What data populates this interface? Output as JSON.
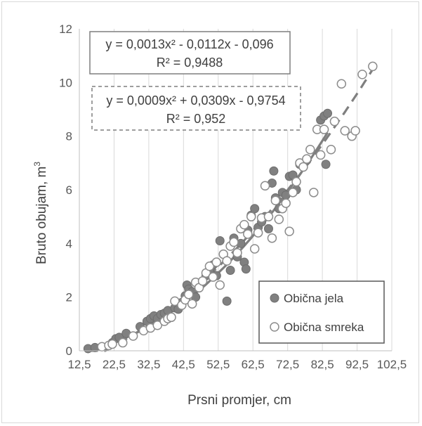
{
  "chart_data": {
    "type": "scatter",
    "xlabel": "Prsni promjer, cm",
    "ylabel": "Bruto obujam, m",
    "ylabel_sup": "3",
    "xlim": [
      12.5,
      102.5
    ],
    "ylim": [
      0,
      12
    ],
    "x_ticks": [
      "12,5",
      "22,5",
      "32,5",
      "42,5",
      "52,5",
      "62,5",
      "72,5",
      "82,5",
      "92,5",
      "102,5"
    ],
    "y_ticks": [
      "0",
      "2",
      "4",
      "6",
      "8",
      "10",
      "12"
    ],
    "grid": "vertical",
    "legend_position": "bottom-right",
    "colors": {
      "jela": "#808080",
      "smreka_fill": "#ffffff",
      "smreka_edge": "#8c8c8c",
      "trend": "#7f7f7f"
    },
    "series": [
      {
        "name": "Obična jela",
        "marker": "filled-circle",
        "trendline": {
          "style": "solid",
          "a": 0.0013,
          "b": -0.0112,
          "c": -0.096,
          "equation": "y = 0,0013x² - 0,0112x - 0,096",
          "r2": "R² = 0,9488",
          "x_range": [
            14,
            84
          ]
        },
        "points": [
          [
            15,
            0.08
          ],
          [
            17,
            0.12
          ],
          [
            22,
            0.3
          ],
          [
            23,
            0.45
          ],
          [
            24,
            0.5
          ],
          [
            26,
            0.65
          ],
          [
            30,
            0.9
          ],
          [
            32,
            1.1
          ],
          [
            33,
            1.2
          ],
          [
            34,
            1.3
          ],
          [
            35,
            1.2
          ],
          [
            36,
            1.35
          ],
          [
            37,
            1.4
          ],
          [
            38,
            1.5
          ],
          [
            40,
            1.6
          ],
          [
            41,
            1.55
          ],
          [
            42,
            1.8
          ],
          [
            43,
            2.05
          ],
          [
            43.5,
            2.45
          ],
          [
            44,
            2.3
          ],
          [
            45,
            2.2
          ],
          [
            46,
            2.0
          ],
          [
            47,
            2.5
          ],
          [
            48,
            2.6
          ],
          [
            49,
            2.8
          ],
          [
            50,
            3.0
          ],
          [
            51,
            3.2
          ],
          [
            52,
            2.8
          ],
          [
            53,
            4.1
          ],
          [
            54,
            3.6
          ],
          [
            55,
            1.85
          ],
          [
            56,
            3.0
          ],
          [
            57,
            4.2
          ],
          [
            58,
            3.5
          ],
          [
            59,
            4.0
          ],
          [
            60,
            3.3
          ],
          [
            60.5,
            3.05
          ],
          [
            61,
            4.5
          ],
          [
            62,
            5.05
          ],
          [
            63,
            5.3
          ],
          [
            64,
            4.6
          ],
          [
            65,
            4.8
          ],
          [
            66,
            5.0
          ],
          [
            67,
            4.55
          ],
          [
            68,
            6.25
          ],
          [
            68.5,
            6.7
          ],
          [
            69,
            5.7
          ],
          [
            70,
            5.3
          ],
          [
            71,
            5.9
          ],
          [
            72,
            5.8
          ],
          [
            73,
            6.5
          ],
          [
            74,
            6.55
          ],
          [
            75,
            6.0
          ],
          [
            76,
            6.95
          ],
          [
            77,
            6.9
          ],
          [
            78,
            7.1
          ],
          [
            82,
            8.6
          ],
          [
            83,
            8.75
          ],
          [
            84,
            8.85
          ],
          [
            83.5,
            6.95
          ]
        ]
      },
      {
        "name": "Obična smreka",
        "marker": "open-circle",
        "trendline": {
          "style": "dashed",
          "a": 0.0009,
          "b": 0.0309,
          "c": -0.9754,
          "equation": "y = 0,0009x² + 0,0309x - 0,9754",
          "r2": "R² = 0,952",
          "x_range": [
            15,
            98
          ]
        },
        "points": [
          [
            19,
            0.15
          ],
          [
            21,
            0.2
          ],
          [
            22,
            0.25
          ],
          [
            25,
            0.3
          ],
          [
            28,
            0.55
          ],
          [
            31,
            0.75
          ],
          [
            33,
            0.85
          ],
          [
            35,
            0.95
          ],
          [
            37,
            1.1
          ],
          [
            38,
            1.2
          ],
          [
            39,
            1.25
          ],
          [
            40,
            1.85
          ],
          [
            42,
            1.7
          ],
          [
            43,
            1.9
          ],
          [
            44,
            2.1
          ],
          [
            45,
            1.75
          ],
          [
            46,
            2.55
          ],
          [
            47,
            2.35
          ],
          [
            48,
            2.6
          ],
          [
            49,
            2.9
          ],
          [
            50,
            3.15
          ],
          [
            51,
            2.75
          ],
          [
            52,
            3.3
          ],
          [
            53,
            2.45
          ],
          [
            54,
            3.6
          ],
          [
            55,
            3.35
          ],
          [
            56,
            3.9
          ],
          [
            57,
            4.05
          ],
          [
            58,
            3.65
          ],
          [
            59,
            4.55
          ],
          [
            60,
            4.7
          ],
          [
            61,
            4.35
          ],
          [
            62,
            5.0
          ],
          [
            63,
            3.8
          ],
          [
            64,
            4.4
          ],
          [
            65,
            4.95
          ],
          [
            66,
            6.15
          ],
          [
            67,
            5.0
          ],
          [
            68,
            4.2
          ],
          [
            69,
            5.6
          ],
          [
            70,
            4.9
          ],
          [
            71,
            5.3
          ],
          [
            72,
            5.5
          ],
          [
            73,
            4.45
          ],
          [
            74,
            5.9
          ],
          [
            75,
            6.3
          ],
          [
            76,
            7.0
          ],
          [
            77,
            6.85
          ],
          [
            78,
            7.15
          ],
          [
            79,
            7.5
          ],
          [
            80,
            5.9
          ],
          [
            81,
            8.25
          ],
          [
            82,
            7.3
          ],
          [
            83,
            8.25
          ],
          [
            85,
            7.5
          ],
          [
            86,
            8.55
          ],
          [
            88,
            9.95
          ],
          [
            89,
            8.2
          ],
          [
            91,
            8.0
          ],
          [
            92,
            8.2
          ],
          [
            94,
            10.3
          ],
          [
            97,
            10.6
          ]
        ]
      }
    ]
  }
}
